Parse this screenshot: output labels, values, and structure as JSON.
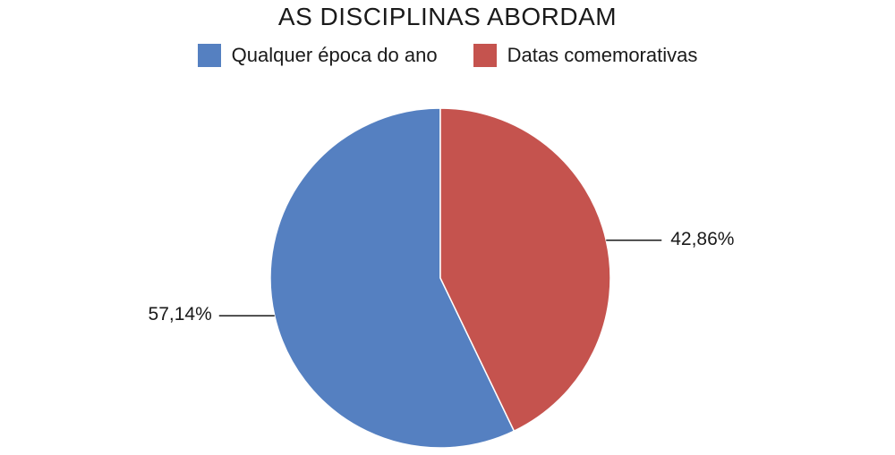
{
  "chart_data": {
    "type": "pie",
    "title": "AS DISCIPLINAS ABORDAM",
    "legend_position": "top",
    "categories": [
      "Qualquer época do ano",
      "Datas comemorativas"
    ],
    "values": [
      57.14,
      42.86
    ],
    "labels": [
      "57,14%",
      "42,86%"
    ],
    "colors": [
      "#5580C1",
      "#C5534E"
    ]
  }
}
